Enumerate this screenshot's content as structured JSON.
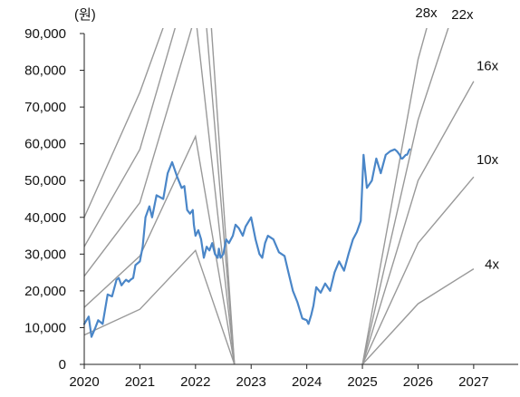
{
  "chart_data": {
    "type": "line",
    "title": "",
    "ylabel": "(원)",
    "xlabel": "",
    "ylim": [
      0,
      90000
    ],
    "xlim": [
      2020.0,
      2027.8
    ],
    "grid": false,
    "y_ticks": [
      {
        "value": 0,
        "label": "0"
      },
      {
        "value": 10000,
        "label": "10,000"
      },
      {
        "value": 20000,
        "label": "20,000"
      },
      {
        "value": 30000,
        "label": "30,000"
      },
      {
        "value": 40000,
        "label": "40,000"
      },
      {
        "value": 50000,
        "label": "50,000"
      },
      {
        "value": 60000,
        "label": "60,000"
      },
      {
        "value": 70000,
        "label": "70,000"
      },
      {
        "value": 80000,
        "label": "80,000"
      },
      {
        "value": 90000,
        "label": "90,000"
      }
    ],
    "x_ticks": [
      {
        "value": 2020,
        "label": "2020"
      },
      {
        "value": 2021,
        "label": "2021"
      },
      {
        "value": 2022,
        "label": "2022"
      },
      {
        "value": 2023,
        "label": "2023"
      },
      {
        "value": 2024,
        "label": "2024"
      },
      {
        "value": 2025,
        "label": "2025"
      },
      {
        "value": 2026,
        "label": "2026"
      },
      {
        "value": 2027,
        "label": "2027"
      }
    ],
    "colors": {
      "price": "#4a86c8",
      "band": "#999999",
      "axis": "#222222"
    },
    "band_series": [
      {
        "name": "28x",
        "label_at": [
          2025.95,
          94500
        ],
        "points": [
          [
            2020,
            40000
          ],
          [
            2021,
            74000
          ],
          [
            2021.5,
            95000
          ]
        ]
      },
      {
        "name": "28x",
        "label_at": null,
        "points": [
          [
            2022.18,
            95000
          ],
          [
            2022.7,
            0
          ]
        ]
      },
      {
        "name": "28x",
        "label_at": null,
        "points": [
          [
            2025.0,
            0
          ],
          [
            2026,
            83000
          ],
          [
            2026.22,
            95000
          ]
        ]
      },
      {
        "name": "22x",
        "label_at": [
          2026.6,
          94000
        ],
        "points": [
          [
            2020,
            32000
          ],
          [
            2021,
            58500
          ],
          [
            2021.7,
            95000
          ]
        ]
      },
      {
        "name": "22x",
        "label_at": null,
        "points": [
          [
            2022.27,
            95000
          ],
          [
            2022.7,
            0
          ]
        ]
      },
      {
        "name": "22x",
        "label_at": null,
        "points": [
          [
            2025.0,
            0
          ],
          [
            2026,
            66500
          ],
          [
            2026.62,
            95000
          ]
        ]
      },
      {
        "name": "16x",
        "label_at": [
          2027.05,
          80000
        ],
        "points": [
          [
            2020,
            24000
          ],
          [
            2021,
            44000
          ],
          [
            2022,
            95000
          ],
          [
            2022.7,
            0
          ]
        ]
      },
      {
        "name": "16x",
        "label_at": null,
        "points": [
          [
            2025.0,
            0
          ],
          [
            2026,
            50000
          ],
          [
            2027,
            77000
          ]
        ]
      },
      {
        "name": "10x",
        "label_at": [
          2027.05,
          54500
        ],
        "points": [
          [
            2020,
            15500
          ],
          [
            2021,
            29500
          ],
          [
            2022,
            62000
          ],
          [
            2022.7,
            0
          ]
        ]
      },
      {
        "name": "10x",
        "label_at": null,
        "points": [
          [
            2025.0,
            0
          ],
          [
            2026,
            33000
          ],
          [
            2027,
            51000
          ]
        ]
      },
      {
        "name": "4x",
        "label_at": [
          2027.2,
          26000
        ],
        "points": [
          [
            2020,
            8000
          ],
          [
            2021,
            15000
          ],
          [
            2022,
            31000
          ],
          [
            2022.7,
            0
          ]
        ]
      },
      {
        "name": "4x",
        "label_at": null,
        "points": [
          [
            2025.0,
            0
          ],
          [
            2026,
            16500
          ],
          [
            2027,
            26000
          ]
        ]
      }
    ],
    "series": [
      {
        "name": "",
        "x": [
          2020.0,
          2020.08,
          2020.13,
          2020.2,
          2020.25,
          2020.33,
          2020.42,
          2020.5,
          2020.58,
          2020.62,
          2020.67,
          2020.72,
          2020.75,
          2020.8,
          2020.83,
          2020.88,
          2020.92,
          2021.0,
          2021.05,
          2021.1,
          2021.17,
          2021.22,
          2021.3,
          2021.42,
          2021.5,
          2021.58,
          2021.67,
          2021.75,
          2021.8,
          2021.85,
          2021.9,
          2021.95,
          2021.97,
          2022.0,
          2022.05,
          2022.1,
          2022.15,
          2022.2,
          2022.25,
          2022.3,
          2022.35,
          2022.4,
          2022.42,
          2022.45,
          2022.5,
          2022.55,
          2022.6,
          2022.67,
          2022.72,
          2022.78,
          2022.85,
          2022.9,
          2023.0,
          2023.08,
          2023.15,
          2023.2,
          2023.25,
          2023.3,
          2023.4,
          2023.5,
          2023.6,
          2023.67,
          2023.75,
          2023.83,
          2023.92,
          2024.0,
          2024.03,
          2024.08,
          2024.12,
          2024.17,
          2024.25,
          2024.33,
          2024.42,
          2024.5,
          2024.58,
          2024.67,
          2024.75,
          2024.83,
          2024.9,
          2024.97,
          2025.02,
          2025.08,
          2025.17,
          2025.25,
          2025.33,
          2025.42,
          2025.5,
          2025.58,
          2025.62,
          2025.67,
          2025.7,
          2025.72,
          2025.75,
          2025.78,
          2025.8,
          2025.82,
          2025.83,
          2025.85
        ],
        "values": [
          11000,
          13000,
          7500,
          10000,
          12000,
          11000,
          19000,
          18500,
          23000,
          23500,
          21500,
          22500,
          23000,
          22500,
          23000,
          23500,
          27000,
          28000,
          32000,
          40000,
          43000,
          40000,
          46000,
          45000,
          52000,
          55000,
          51000,
          48000,
          48500,
          42000,
          41000,
          42000,
          38000,
          35000,
          36500,
          34000,
          29000,
          32000,
          31000,
          33000,
          30000,
          29000,
          31500,
          29000,
          30000,
          34000,
          33000,
          35000,
          38000,
          37000,
          35000,
          37500,
          40000,
          34000,
          30000,
          29000,
          33000,
          35000,
          34000,
          30500,
          29500,
          25000,
          20000,
          17000,
          12500,
          12000,
          11000,
          13500,
          16000,
          21000,
          19500,
          22000,
          20000,
          25000,
          28000,
          25500,
          30000,
          34000,
          36000,
          39000,
          57000,
          48000,
          50000,
          56000,
          52000,
          57000,
          58000,
          58500,
          58000,
          57000,
          56000,
          56000,
          56500,
          57000,
          57000,
          57500,
          58000,
          58500
        ]
      }
    ]
  }
}
